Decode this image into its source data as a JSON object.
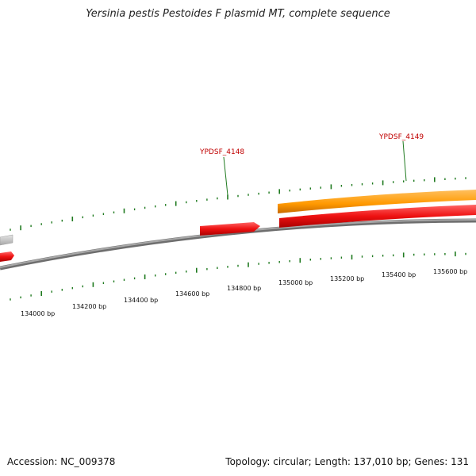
{
  "title": "Yersinia pestis Pestoides F plasmid MT, complete sequence",
  "footer": {
    "accession": "Accession: NC_009378",
    "summary": "Topology: circular; Length: 137,010 bp; Genes: 131"
  },
  "colors": {
    "backbone": "#7a7a7a",
    "gene_red": "#ee1111",
    "gene_orange": "#ff9900",
    "gene_gray": "#c8c8c8",
    "ticks": "#1f7a1f",
    "label": "#c00000"
  },
  "axis_labels": [
    "134000 bp",
    "134200 bp",
    "134400 bp",
    "134600 bp",
    "134800 bp",
    "135000 bp",
    "135200 bp",
    "135400 bp",
    "135600 bp"
  ],
  "gene_labels": [
    {
      "name": "YPDSF_4148"
    },
    {
      "name": "YPDSF_4149"
    }
  ]
}
